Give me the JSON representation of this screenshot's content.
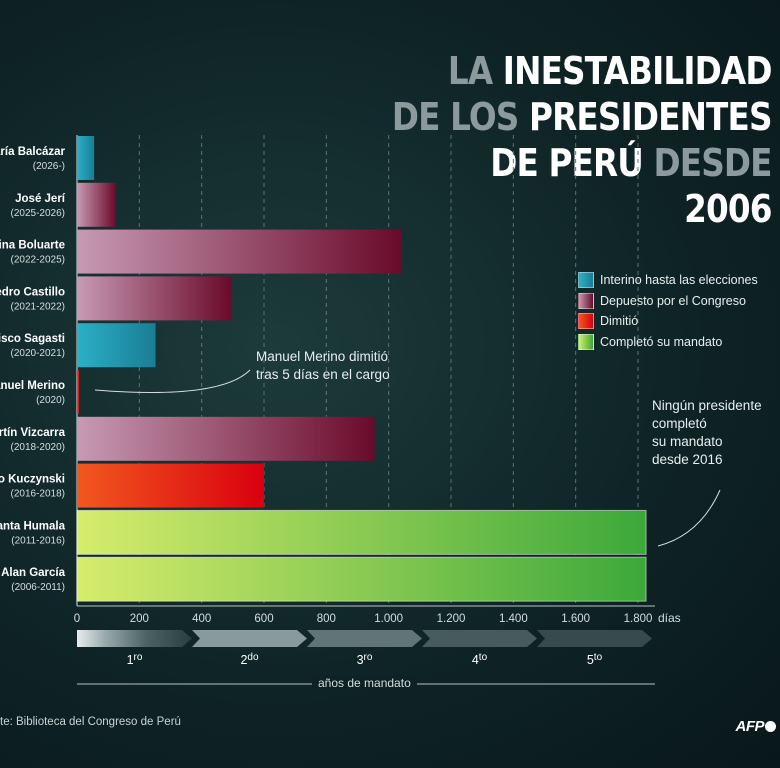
{
  "title": {
    "line1": [
      {
        "text": "LA ",
        "tone": "dim"
      },
      {
        "text": "INESTABILIDAD",
        "tone": "bright"
      }
    ],
    "line2": [
      {
        "text": "DE LOS ",
        "tone": "dim"
      },
      {
        "text": "PRESIDENTES",
        "tone": "bright"
      }
    ],
    "line3": [
      {
        "text": "DE PERÚ ",
        "tone": "bright"
      },
      {
        "text": "DESDE",
        "tone": "dim"
      }
    ],
    "line4": [
      {
        "text": "2006",
        "tone": "bright"
      }
    ]
  },
  "colors": {
    "interino": [
      "#2bb0c7",
      "#1a7d95"
    ],
    "depuesto": [
      "#c79ab3",
      "#6a0a2a"
    ],
    "dimitio": [
      "#f2581f",
      "#d9000f"
    ],
    "completo": [
      "#d7ec6c",
      "#3ca83a"
    ],
    "grid": "#5d7274",
    "axis": "#b8c4c4"
  },
  "legend": [
    {
      "label": "Interino hasta las elecciones",
      "key": "interino"
    },
    {
      "label": "Depuesto por el Congreso",
      "key": "depuesto"
    },
    {
      "label": "Dimitió",
      "key": "dimitio"
    },
    {
      "label": "Completó su mandato",
      "key": "completo"
    }
  ],
  "chart_data": {
    "type": "bar",
    "orientation": "horizontal",
    "title": "LA INESTABILIDAD DE LOS PRESIDENTES DE PERÚ DESDE 2006",
    "xlabel": "días",
    "xlim": [
      0,
      1825
    ],
    "xticks": [
      0,
      200,
      400,
      600,
      800,
      1000,
      1200,
      1400,
      1600,
      1800
    ],
    "xtick_labels": [
      "0",
      "200",
      "400",
      "600",
      "800",
      "1.000",
      "1.200",
      "1.400",
      "1.600",
      "1.800"
    ],
    "bars": [
      {
        "name": "aría Balcázar",
        "period": "(2026-)",
        "days": 55,
        "category": "interino"
      },
      {
        "name": "José Jerí",
        "period": "(2025-2026)",
        "days": 125,
        "category": "depuesto"
      },
      {
        "name": "ina Boluarte",
        "period": "(2022-2025)",
        "days": 1041,
        "category": "depuesto"
      },
      {
        "name": "edro Castillo",
        "period": "(2021-2022)",
        "days": 495,
        "category": "depuesto"
      },
      {
        "name": "cisco Sagasti",
        "period": "(2020-2021)",
        "days": 252,
        "category": "interino"
      },
      {
        "name": "anuel Merino",
        "period": "(2020)",
        "days": 5,
        "category": "dimitio"
      },
      {
        "name": "artín Vizcarra",
        "period": "(2018-2020)",
        "days": 955,
        "category": "depuesto"
      },
      {
        "name": "ro Kuczynski",
        "period": "(2016-2018)",
        "days": 600,
        "category": "dimitio"
      },
      {
        "name": "anta Humala",
        "period": "(2011-2016)",
        "days": 1826,
        "category": "completo"
      },
      {
        "name": "Alan García",
        "period": "(2006-2011)",
        "days": 1826,
        "category": "completo"
      }
    ],
    "terms": [
      {
        "num": "1",
        "sup": "ro"
      },
      {
        "num": "2",
        "sup": "do"
      },
      {
        "num": "3",
        "sup": "ro"
      },
      {
        "num": "4",
        "sup": "to"
      },
      {
        "num": "5",
        "sup": "to"
      }
    ],
    "terms_caption": "años de mandato"
  },
  "annotations": {
    "merino": [
      "Manuel Merino dimitió",
      "tras 5 días en el cargo"
    ],
    "ninguno": [
      "Ningún presidente",
      "completó",
      "su mandato",
      "desde 2016"
    ]
  },
  "source": "te: Biblioteca del Congreso de Perú",
  "logo": "AFP"
}
